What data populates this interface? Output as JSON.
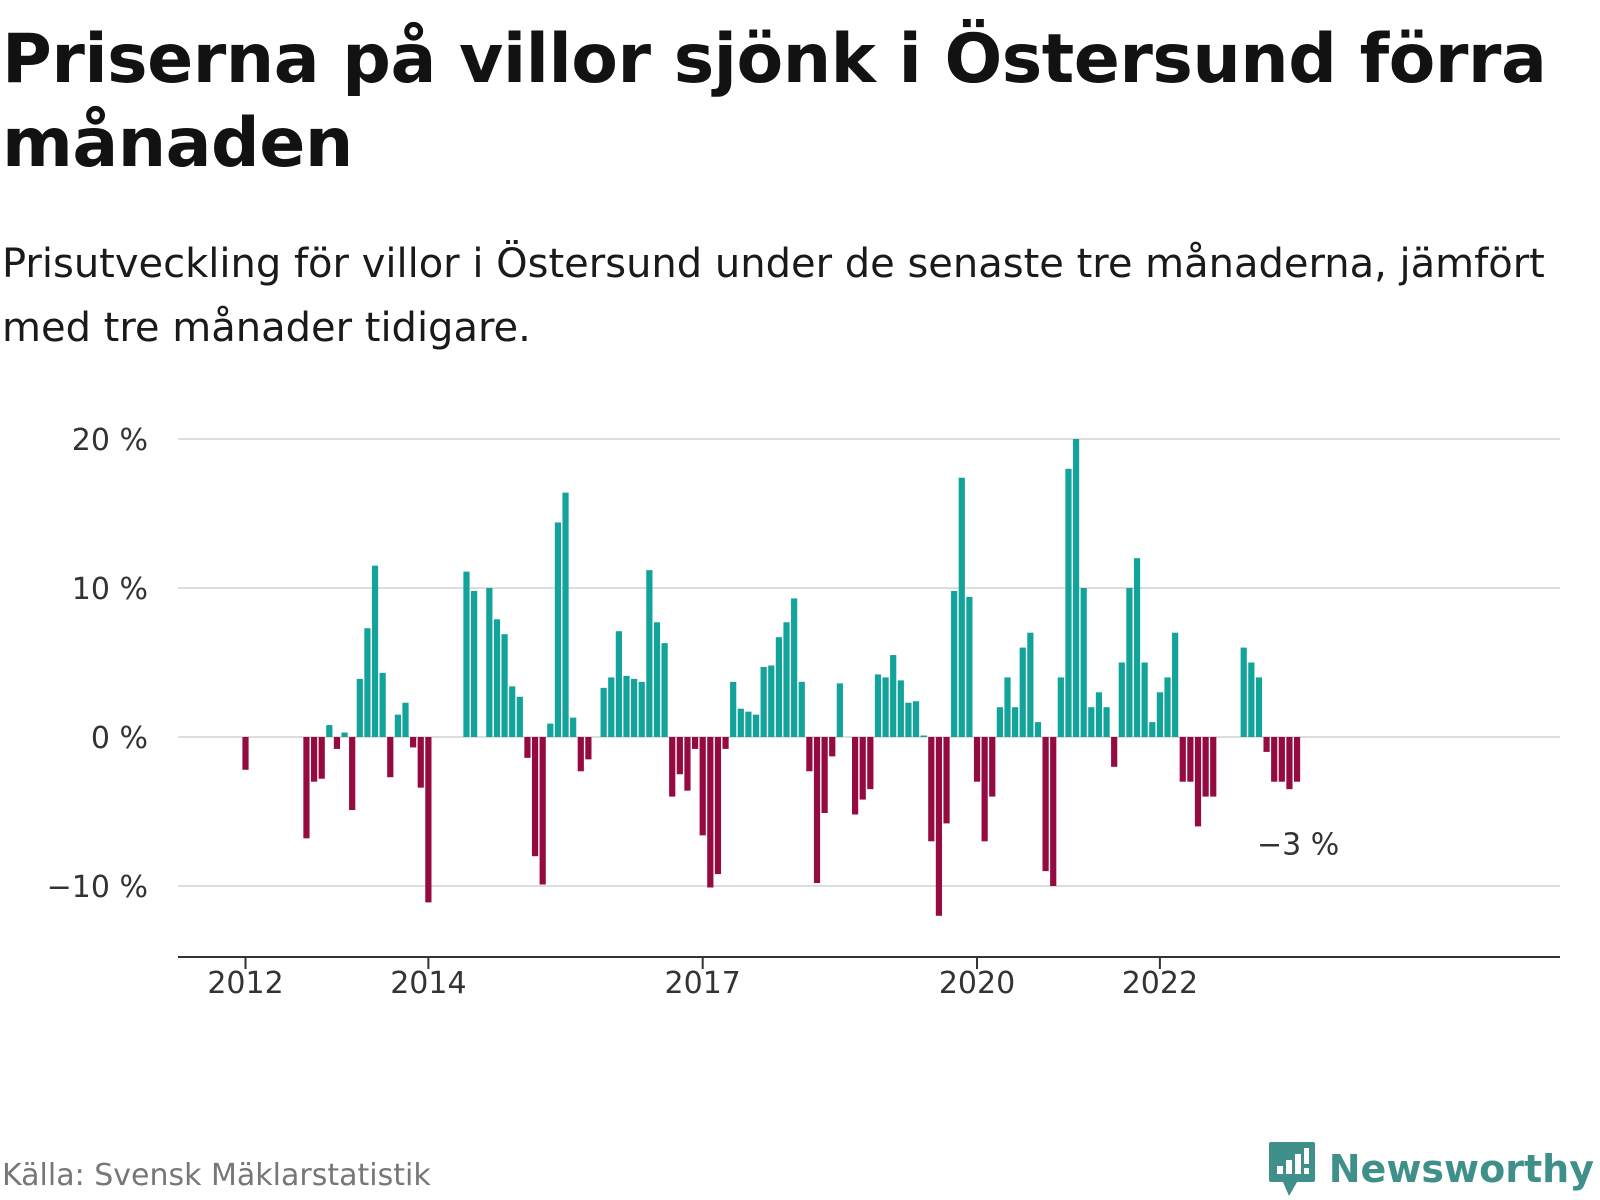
{
  "title": "Priserna på villor sjönk i Östersund förra månaden",
  "subtitle": "Prisutveckling för villor i Östersund under de senaste tre månaderna, jämfört med tre månader tidigare.",
  "source": "Källa: Svensk Mäklarstatistik",
  "brand": {
    "name": "Newsworthy",
    "icon": "newsworthy-logo-icon",
    "color": "#3f8f8a"
  },
  "colors": {
    "positive": "#12a39a",
    "negative": "#950a41",
    "grid": "#dddddd",
    "axis": "#333333"
  },
  "chart_data": {
    "type": "bar",
    "title": "Priserna på villor sjönk i Östersund förra månaden",
    "subtitle": "Prisutveckling för villor i Östersund under de senaste tre månaderna, jämfört med tre månader tidigare.",
    "ylim": [
      -13.5,
      20
    ],
    "y_ticks": [
      {
        "value": 20,
        "label": "20 %"
      },
      {
        "value": 10,
        "label": "10 %"
      },
      {
        "value": 0,
        "label": "0 %"
      },
      {
        "value": -10,
        "label": "−10 %"
      }
    ],
    "x_ticks": [
      {
        "value": "2012-01",
        "label": "2012"
      },
      {
        "value": "2014-01",
        "label": "2014"
      },
      {
        "value": "2017-01",
        "label": "2017"
      },
      {
        "value": "2020-01",
        "label": "2020"
      },
      {
        "value": "2022-01",
        "label": "2022"
      }
    ],
    "x_start": "2011-02",
    "values": [
      null,
      null,
      null,
      null,
      null,
      null,
      null,
      null,
      null,
      null,
      null,
      -2.2,
      null,
      null,
      null,
      null,
      null,
      null,
      null,
      -6.8,
      -3,
      -2.8,
      0.8,
      -0.8,
      0.3,
      -4.9,
      3.9,
      7.3,
      11.5,
      4.3,
      -2.7,
      1.5,
      2.3,
      -0.7,
      -3.4,
      -11.1,
      null,
      null,
      null,
      null,
      11.1,
      9.8,
      null,
      10,
      7.9,
      6.9,
      3.4,
      2.7,
      -1.4,
      -8,
      -9.9,
      0.9,
      14.4,
      16.4,
      1.3,
      -2.3,
      -1.5,
      null,
      3.3,
      4,
      7.1,
      4.1,
      3.9,
      3.7,
      11.2,
      7.7,
      6.3,
      -4,
      -2.5,
      -3.6,
      -0.8,
      -6.6,
      -10.1,
      -9.2,
      -0.8,
      3.7,
      1.9,
      1.7,
      1.5,
      4.7,
      4.8,
      6.7,
      7.7,
      9.3,
      3.7,
      -2.3,
      -9.8,
      -5.1,
      -1.3,
      3.6,
      null,
      -5.2,
      -4.2,
      -3.5,
      4.2,
      4,
      5.5,
      3.8,
      2.3,
      2.4,
      0.1,
      -7,
      -12,
      -5.8,
      9.8,
      17.4,
      9.4,
      -3,
      -7,
      -4,
      2,
      4,
      2,
      6,
      7,
      1,
      -9,
      -10,
      4,
      18,
      20,
      10,
      2,
      3,
      2,
      -2,
      5,
      10,
      12,
      5,
      1,
      3,
      4,
      7,
      -3,
      -3,
      -6,
      -4,
      -4,
      null,
      null,
      null,
      6,
      5,
      4,
      -1,
      -3,
      -3,
      -3.5,
      -3
    ],
    "last_label": "−3 %"
  }
}
